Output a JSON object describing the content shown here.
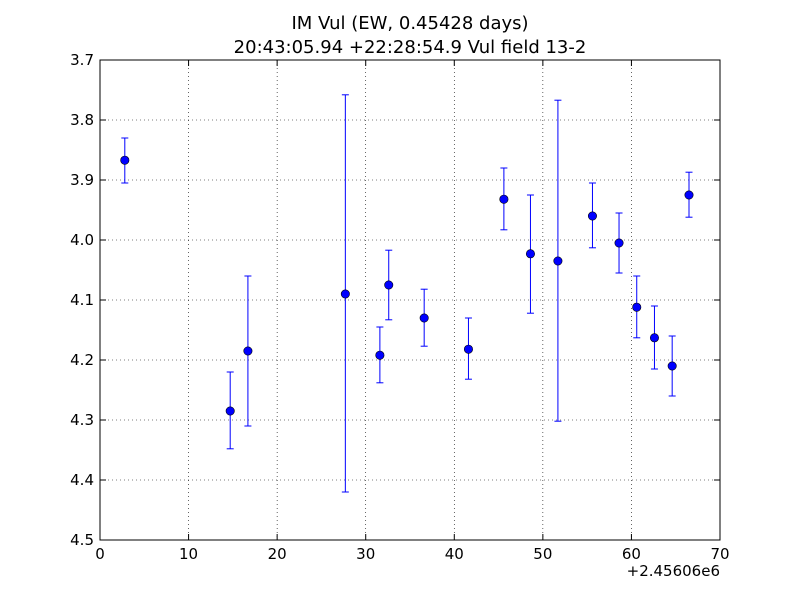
{
  "chart_data": {
    "type": "scatter",
    "title_line1": "IM Vul (EW, 0.45428 days)",
    "title_line2": "20:43:05.94 +22:28:54.9 Vul field 13-2",
    "xlabel": "",
    "ylabel": "",
    "x_offset_label": "+2.45606e6",
    "xlim": [
      0,
      70
    ],
    "ylim": [
      3.7,
      4.5
    ],
    "y_inverted": true,
    "x_ticks": [
      0,
      10,
      20,
      30,
      40,
      50,
      60,
      70
    ],
    "x_tick_labels": [
      "0",
      "10",
      "20",
      "30",
      "40",
      "50",
      "60",
      "70"
    ],
    "y_ticks": [
      3.7,
      3.8,
      3.9,
      4.0,
      4.1,
      4.2,
      4.3,
      4.4,
      4.5
    ],
    "y_tick_labels": [
      "3.7",
      "3.8",
      "3.9",
      "4.0",
      "4.1",
      "4.2",
      "4.3",
      "4.4",
      "4.5"
    ],
    "grid": true,
    "marker_color": "#0000ff",
    "errorbar_color": "#0000ff",
    "points": [
      {
        "x": 2.8,
        "y": 3.867,
        "ylow": 3.83,
        "yhigh": 3.905
      },
      {
        "x": 14.7,
        "y": 4.285,
        "ylow": 4.22,
        "yhigh": 4.348
      },
      {
        "x": 16.7,
        "y": 4.185,
        "ylow": 4.06,
        "yhigh": 4.31
      },
      {
        "x": 27.7,
        "y": 4.09,
        "ylow": 3.758,
        "yhigh": 4.42
      },
      {
        "x": 31.6,
        "y": 4.192,
        "ylow": 4.145,
        "yhigh": 4.238
      },
      {
        "x": 32.6,
        "y": 4.075,
        "ylow": 4.017,
        "yhigh": 4.133
      },
      {
        "x": 36.6,
        "y": 4.13,
        "ylow": 4.082,
        "yhigh": 4.177
      },
      {
        "x": 41.6,
        "y": 4.182,
        "ylow": 4.13,
        "yhigh": 4.232
      },
      {
        "x": 45.6,
        "y": 3.932,
        "ylow": 3.88,
        "yhigh": 3.983
      },
      {
        "x": 48.6,
        "y": 4.023,
        "ylow": 3.925,
        "yhigh": 4.122
      },
      {
        "x": 51.7,
        "y": 4.035,
        "ylow": 3.767,
        "yhigh": 4.302
      },
      {
        "x": 55.6,
        "y": 3.96,
        "ylow": 3.905,
        "yhigh": 4.013
      },
      {
        "x": 58.6,
        "y": 4.005,
        "ylow": 3.955,
        "yhigh": 4.055
      },
      {
        "x": 60.6,
        "y": 4.112,
        "ylow": 4.06,
        "yhigh": 4.163
      },
      {
        "x": 62.6,
        "y": 4.163,
        "ylow": 4.11,
        "yhigh": 4.215
      },
      {
        "x": 64.6,
        "y": 4.21,
        "ylow": 4.16,
        "yhigh": 4.26
      },
      {
        "x": 66.5,
        "y": 3.925,
        "ylow": 3.887,
        "yhigh": 3.962
      }
    ]
  }
}
